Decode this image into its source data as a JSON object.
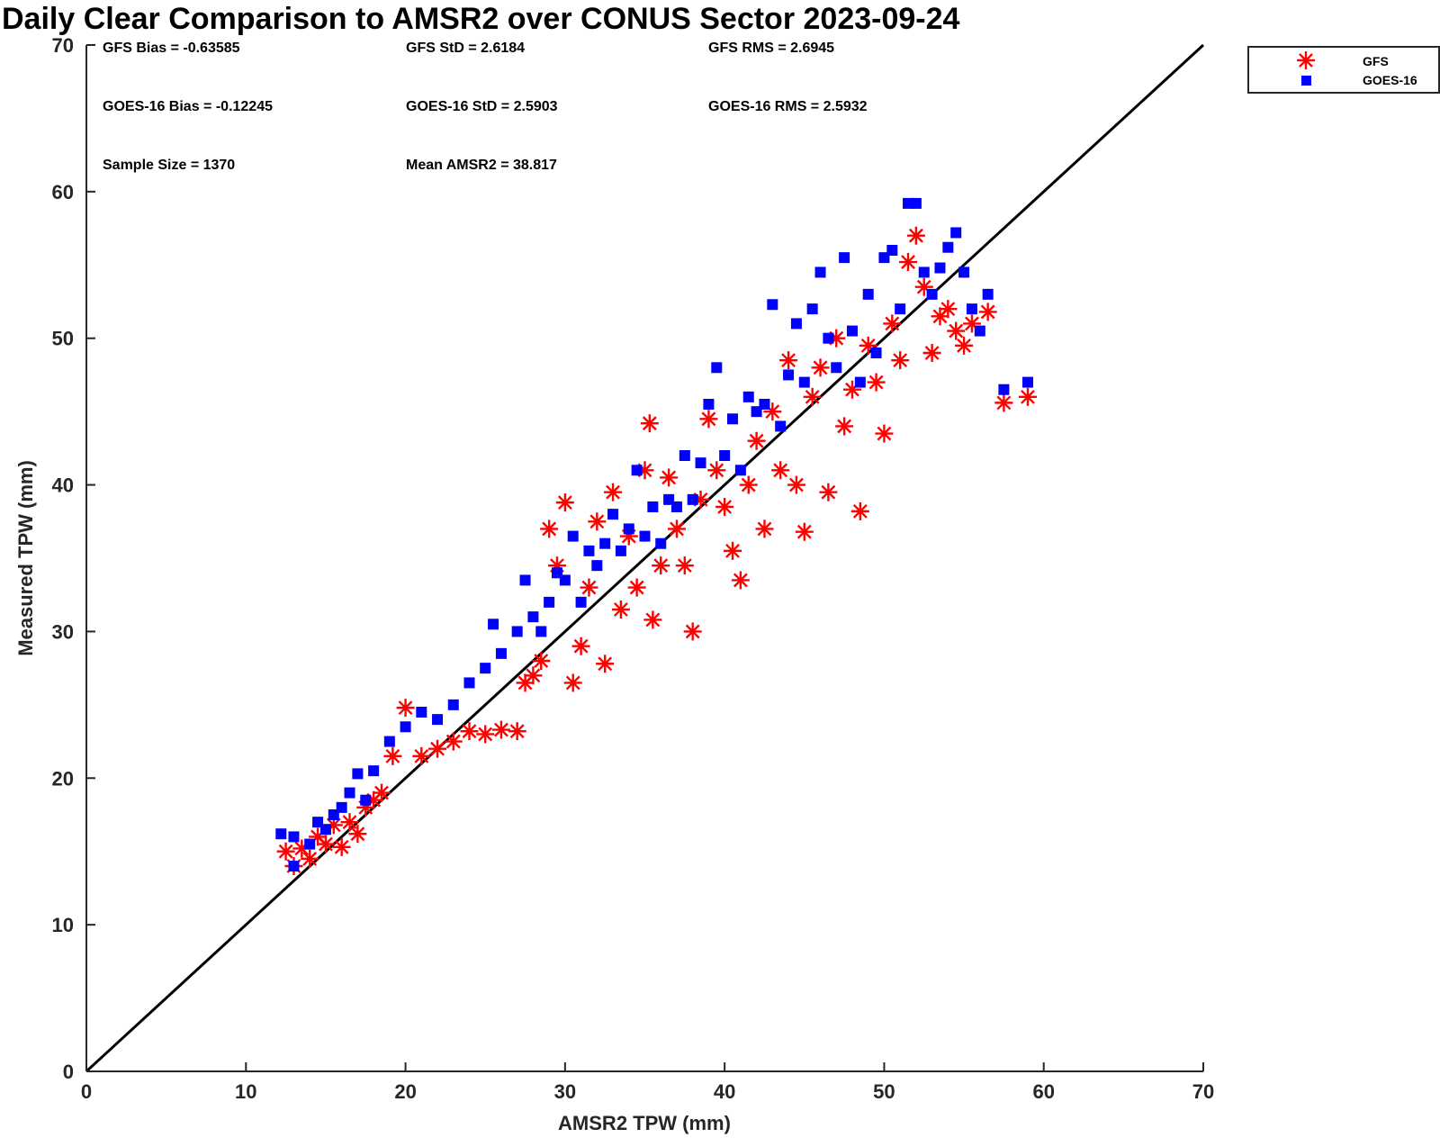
{
  "chart_data": {
    "type": "scatter",
    "title": "Daily Clear Comparison to AMSR2 over CONUS Sector 2023-09-24",
    "xlabel": "AMSR2 TPW (mm)",
    "ylabel": "Measured TPW (mm)",
    "xlim": [
      0,
      70
    ],
    "ylim": [
      0,
      70
    ],
    "xticks": [
      "0",
      "10",
      "20",
      "30",
      "40",
      "50",
      "60",
      "70"
    ],
    "yticks": [
      "0",
      "10",
      "20",
      "30",
      "40",
      "50",
      "60",
      "70"
    ],
    "grid": false,
    "legend_position": "top-right outside",
    "stats": {
      "gfs_bias": "GFS Bias = -0.63585",
      "gfs_std": "GFS StD = 2.6184",
      "gfs_rms": "GFS RMS = 2.6945",
      "goes_bias": "GOES-16 Bias = -0.12245",
      "goes_std": "GOES-16 StD = 2.5903",
      "goes_rms": "GOES-16 RMS = 2.5932",
      "sample_size": "Sample Size = 1370",
      "mean_amsr2": "Mean AMSR2 = 38.817"
    },
    "reference_line": {
      "from": [
        0,
        0
      ],
      "to": [
        70,
        70
      ],
      "color": "#000000"
    },
    "series": [
      {
        "name": "GFS",
        "marker": "asterisk",
        "color": "#ff0000",
        "points": [
          [
            12.5,
            15.0
          ],
          [
            13.0,
            14.0
          ],
          [
            13.5,
            15.2
          ],
          [
            14.0,
            14.5
          ],
          [
            14.5,
            16.0
          ],
          [
            15.0,
            15.5
          ],
          [
            15.5,
            16.8
          ],
          [
            16.0,
            15.3
          ],
          [
            16.5,
            17.0
          ],
          [
            17.0,
            16.2
          ],
          [
            17.5,
            18.0
          ],
          [
            18.0,
            18.5
          ],
          [
            18.5,
            19.0
          ],
          [
            19.2,
            21.5
          ],
          [
            20.0,
            24.8
          ],
          [
            21.0,
            21.5
          ],
          [
            22.0,
            22.0
          ],
          [
            23.0,
            22.5
          ],
          [
            24.0,
            23.2
          ],
          [
            25.0,
            23.0
          ],
          [
            26.0,
            23.3
          ],
          [
            27.0,
            23.2
          ],
          [
            27.5,
            26.5
          ],
          [
            28.0,
            27.0
          ],
          [
            28.5,
            28.0
          ],
          [
            29.0,
            37.0
          ],
          [
            29.5,
            34.5
          ],
          [
            30.0,
            38.8
          ],
          [
            30.5,
            26.5
          ],
          [
            31.0,
            29.0
          ],
          [
            31.5,
            33.0
          ],
          [
            32.0,
            37.5
          ],
          [
            32.5,
            27.8
          ],
          [
            33.0,
            39.5
          ],
          [
            33.5,
            31.5
          ],
          [
            34.0,
            36.5
          ],
          [
            34.5,
            33.0
          ],
          [
            35.0,
            41.0
          ],
          [
            35.3,
            44.2
          ],
          [
            35.5,
            30.8
          ],
          [
            36.0,
            34.5
          ],
          [
            36.5,
            40.5
          ],
          [
            37.0,
            37.0
          ],
          [
            37.5,
            34.5
          ],
          [
            38.0,
            30.0
          ],
          [
            38.5,
            39.0
          ],
          [
            39.0,
            44.5
          ],
          [
            39.5,
            41.0
          ],
          [
            40.0,
            38.5
          ],
          [
            40.5,
            35.5
          ],
          [
            41.0,
            33.5
          ],
          [
            41.5,
            40.0
          ],
          [
            42.0,
            43.0
          ],
          [
            42.5,
            37.0
          ],
          [
            43.0,
            45.0
          ],
          [
            43.5,
            41.0
          ],
          [
            44.0,
            48.5
          ],
          [
            44.5,
            40.0
          ],
          [
            45.0,
            36.8
          ],
          [
            45.5,
            46.0
          ],
          [
            46.0,
            48.0
          ],
          [
            46.5,
            39.5
          ],
          [
            47.0,
            50.0
          ],
          [
            47.5,
            44.0
          ],
          [
            48.0,
            46.5
          ],
          [
            48.5,
            38.2
          ],
          [
            49.0,
            49.5
          ],
          [
            49.5,
            47.0
          ],
          [
            50.0,
            43.5
          ],
          [
            50.5,
            51.0
          ],
          [
            51.0,
            48.5
          ],
          [
            51.5,
            55.2
          ],
          [
            52.0,
            57.0
          ],
          [
            52.5,
            53.5
          ],
          [
            53.0,
            49.0
          ],
          [
            53.5,
            51.5
          ],
          [
            54.0,
            52.0
          ],
          [
            54.5,
            50.5
          ],
          [
            55.0,
            49.5
          ],
          [
            55.5,
            51.0
          ],
          [
            56.5,
            51.8
          ],
          [
            57.5,
            45.6
          ],
          [
            59.0,
            46.0
          ]
        ]
      },
      {
        "name": "GOES-16",
        "marker": "square",
        "color": "#0000ff",
        "points": [
          [
            12.2,
            16.2
          ],
          [
            13.0,
            16.0
          ],
          [
            13.0,
            14.0
          ],
          [
            14.0,
            15.5
          ],
          [
            14.5,
            17.0
          ],
          [
            15.0,
            16.5
          ],
          [
            15.5,
            17.5
          ],
          [
            16.0,
            18.0
          ],
          [
            16.5,
            19.0
          ],
          [
            17.0,
            20.3
          ],
          [
            17.5,
            18.5
          ],
          [
            18.0,
            20.5
          ],
          [
            19.0,
            22.5
          ],
          [
            20.0,
            23.5
          ],
          [
            21.0,
            24.5
          ],
          [
            22.0,
            24.0
          ],
          [
            23.0,
            25.0
          ],
          [
            24.0,
            26.5
          ],
          [
            25.0,
            27.5
          ],
          [
            25.5,
            30.5
          ],
          [
            26.0,
            28.5
          ],
          [
            27.0,
            30.0
          ],
          [
            27.5,
            33.5
          ],
          [
            28.0,
            31.0
          ],
          [
            28.5,
            30.0
          ],
          [
            29.0,
            32.0
          ],
          [
            29.5,
            34.0
          ],
          [
            30.0,
            33.5
          ],
          [
            30.5,
            36.5
          ],
          [
            31.0,
            32.0
          ],
          [
            31.5,
            35.5
          ],
          [
            32.0,
            34.5
          ],
          [
            32.5,
            36.0
          ],
          [
            33.0,
            38.0
          ],
          [
            33.5,
            35.5
          ],
          [
            34.0,
            37.0
          ],
          [
            34.5,
            41.0
          ],
          [
            35.0,
            36.5
          ],
          [
            35.5,
            38.5
          ],
          [
            36.0,
            36.0
          ],
          [
            36.5,
            39.0
          ],
          [
            37.0,
            38.5
          ],
          [
            37.5,
            42.0
          ],
          [
            38.0,
            39.0
          ],
          [
            38.5,
            41.5
          ],
          [
            39.0,
            45.5
          ],
          [
            39.5,
            48.0
          ],
          [
            40.0,
            42.0
          ],
          [
            40.5,
            44.5
          ],
          [
            41.0,
            41.0
          ],
          [
            41.5,
            46.0
          ],
          [
            42.0,
            45.0
          ],
          [
            42.5,
            45.5
          ],
          [
            43.0,
            52.3
          ],
          [
            43.5,
            44.0
          ],
          [
            44.0,
            47.5
          ],
          [
            44.5,
            51.0
          ],
          [
            45.0,
            47.0
          ],
          [
            45.5,
            52.0
          ],
          [
            46.0,
            54.5
          ],
          [
            46.5,
            50.0
          ],
          [
            47.0,
            48.0
          ],
          [
            47.5,
            55.5
          ],
          [
            48.0,
            50.5
          ],
          [
            48.5,
            47.0
          ],
          [
            49.0,
            53.0
          ],
          [
            49.5,
            49.0
          ],
          [
            50.0,
            55.5
          ],
          [
            50.5,
            56.0
          ],
          [
            51.0,
            52.0
          ],
          [
            51.5,
            59.2
          ],
          [
            52.0,
            59.2
          ],
          [
            52.5,
            54.5
          ],
          [
            53.0,
            53.0
          ],
          [
            53.5,
            54.8
          ],
          [
            54.0,
            56.2
          ],
          [
            54.5,
            57.2
          ],
          [
            55.0,
            54.5
          ],
          [
            55.5,
            52.0
          ],
          [
            56.0,
            50.5
          ],
          [
            56.5,
            53.0
          ],
          [
            57.5,
            46.5
          ],
          [
            59.0,
            47.0
          ]
        ]
      }
    ]
  }
}
